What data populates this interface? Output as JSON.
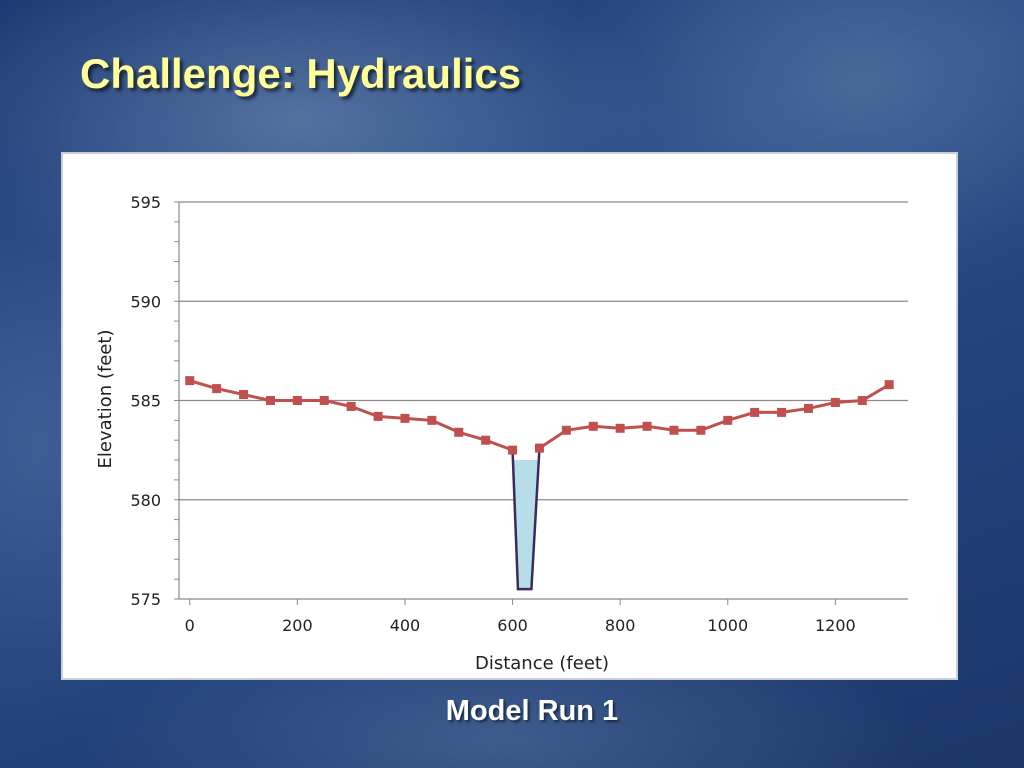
{
  "slide": {
    "title": "Challenge: Hydraulics",
    "caption": "Model Run 1"
  },
  "chart_data": {
    "type": "line",
    "title": "",
    "xlabel": "Distance (feet)",
    "ylabel": "Elevation (feet)",
    "xlim": [
      -20,
      1335
    ],
    "ylim": [
      575,
      595
    ],
    "x_ticks": [
      0,
      200,
      400,
      600,
      800,
      1000,
      1200
    ],
    "y_ticks": [
      575,
      580,
      585,
      590,
      595
    ],
    "y_minor_step": 1,
    "grid": "horizontal-major",
    "legend": "none",
    "series": [
      {
        "color": "#c0504d",
        "marker": "square",
        "x": [
          0,
          50,
          100,
          150,
          200,
          250,
          300,
          350,
          400,
          450,
          500,
          550,
          600,
          650,
          700,
          750,
          800,
          850,
          900,
          950,
          1000,
          1050,
          1100,
          1150,
          1200,
          1250,
          1300
        ],
        "y": [
          586.0,
          585.6,
          585.3,
          585.0,
          585.0,
          585.0,
          584.7,
          584.2,
          584.1,
          584.0,
          583.4,
          583.0,
          582.5,
          582.6,
          583.5,
          583.7,
          583.6,
          583.7,
          583.5,
          583.5,
          584.0,
          584.4,
          584.4,
          584.6,
          584.9,
          585.0,
          585.8
        ]
      }
    ],
    "channel": {
      "outline_color": "#3a2a5e",
      "water_color": "#b7dde8",
      "water_surface_elevation": 582.0,
      "outline": [
        [
          600,
          582.5
        ],
        [
          610,
          575.5
        ],
        [
          635,
          575.5
        ],
        [
          650,
          582.6
        ]
      ]
    }
  }
}
